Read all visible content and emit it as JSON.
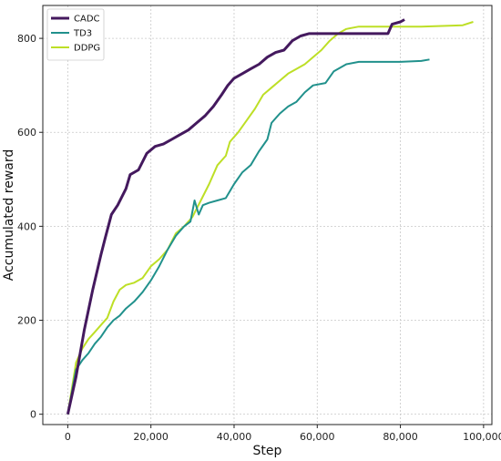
{
  "chart_data": {
    "type": "line",
    "xlabel": "Step",
    "ylabel": "Accumulated reward",
    "xlim": [
      -6000,
      102000
    ],
    "ylim": [
      -22,
      870
    ],
    "x_ticks": [
      0,
      20000,
      40000,
      60000,
      80000,
      100000
    ],
    "x_tick_labels": [
      "0",
      "20,000",
      "40,000",
      "60,000",
      "80,000",
      "100,000"
    ],
    "y_ticks": [
      0,
      200,
      400,
      600,
      800
    ],
    "y_tick_labels": [
      "0",
      "200",
      "400",
      "600",
      "800"
    ],
    "grid": true,
    "legend_position": "top-left",
    "series": [
      {
        "name": "CADC",
        "color": "#44195e",
        "points": [
          [
            0,
            0
          ],
          [
            2000,
            80
          ],
          [
            4000,
            180
          ],
          [
            6000,
            265
          ],
          [
            8000,
            340
          ],
          [
            9000,
            375
          ],
          [
            10500,
            425
          ],
          [
            12000,
            445
          ],
          [
            14000,
            480
          ],
          [
            15000,
            510
          ],
          [
            17000,
            520
          ],
          [
            19000,
            555
          ],
          [
            21000,
            570
          ],
          [
            23000,
            575
          ],
          [
            25000,
            585
          ],
          [
            27000,
            595
          ],
          [
            29000,
            605
          ],
          [
            31000,
            620
          ],
          [
            33000,
            635
          ],
          [
            35000,
            655
          ],
          [
            37000,
            680
          ],
          [
            38500,
            700
          ],
          [
            40000,
            715
          ],
          [
            42000,
            725
          ],
          [
            44000,
            735
          ],
          [
            46000,
            745
          ],
          [
            48000,
            760
          ],
          [
            50000,
            770
          ],
          [
            52000,
            775
          ],
          [
            54000,
            795
          ],
          [
            56000,
            805
          ],
          [
            58000,
            810
          ],
          [
            62000,
            810
          ],
          [
            77000,
            810
          ],
          [
            78000,
            830
          ],
          [
            80000,
            835
          ],
          [
            81000,
            840
          ]
        ]
      },
      {
        "name": "TD3",
        "color": "#21918c",
        "points": [
          [
            0,
            0
          ],
          [
            2000,
            95
          ],
          [
            3500,
            115
          ],
          [
            5000,
            130
          ],
          [
            6500,
            150
          ],
          [
            8000,
            165
          ],
          [
            9500,
            185
          ],
          [
            11000,
            200
          ],
          [
            12500,
            210
          ],
          [
            14000,
            225
          ],
          [
            16000,
            240
          ],
          [
            18000,
            260
          ],
          [
            20000,
            285
          ],
          [
            22000,
            315
          ],
          [
            24000,
            350
          ],
          [
            26000,
            380
          ],
          [
            28000,
            400
          ],
          [
            29500,
            410
          ],
          [
            30500,
            455
          ],
          [
            31500,
            425
          ],
          [
            32500,
            445
          ],
          [
            34000,
            450
          ],
          [
            36000,
            455
          ],
          [
            38000,
            460
          ],
          [
            40000,
            490
          ],
          [
            42000,
            515
          ],
          [
            44000,
            530
          ],
          [
            46000,
            560
          ],
          [
            48000,
            585
          ],
          [
            49000,
            620
          ],
          [
            51000,
            640
          ],
          [
            53000,
            655
          ],
          [
            55000,
            665
          ],
          [
            57000,
            685
          ],
          [
            59000,
            700
          ],
          [
            62000,
            705
          ],
          [
            64000,
            730
          ],
          [
            67000,
            745
          ],
          [
            70000,
            750
          ],
          [
            80000,
            750
          ],
          [
            85000,
            752
          ],
          [
            87000,
            755
          ]
        ]
      },
      {
        "name": "DDPG",
        "color": "#bddf26",
        "points": [
          [
            0,
            0
          ],
          [
            2000,
            110
          ],
          [
            3500,
            140
          ],
          [
            5000,
            160
          ],
          [
            6500,
            175
          ],
          [
            8000,
            190
          ],
          [
            9500,
            205
          ],
          [
            11000,
            240
          ],
          [
            12500,
            265
          ],
          [
            14000,
            275
          ],
          [
            16000,
            280
          ],
          [
            18000,
            290
          ],
          [
            20000,
            315
          ],
          [
            22000,
            330
          ],
          [
            24000,
            350
          ],
          [
            26000,
            385
          ],
          [
            28000,
            400
          ],
          [
            30000,
            420
          ],
          [
            32000,
            455
          ],
          [
            34000,
            490
          ],
          [
            36000,
            530
          ],
          [
            38000,
            550
          ],
          [
            39000,
            580
          ],
          [
            41000,
            600
          ],
          [
            43000,
            625
          ],
          [
            45000,
            650
          ],
          [
            47000,
            680
          ],
          [
            49000,
            695
          ],
          [
            51000,
            710
          ],
          [
            53000,
            725
          ],
          [
            55000,
            735
          ],
          [
            57000,
            745
          ],
          [
            59000,
            760
          ],
          [
            61000,
            775
          ],
          [
            63000,
            795
          ],
          [
            65000,
            810
          ],
          [
            67000,
            820
          ],
          [
            70000,
            825
          ],
          [
            75000,
            825
          ],
          [
            85000,
            825
          ],
          [
            95000,
            828
          ],
          [
            97500,
            835
          ]
        ]
      }
    ]
  }
}
